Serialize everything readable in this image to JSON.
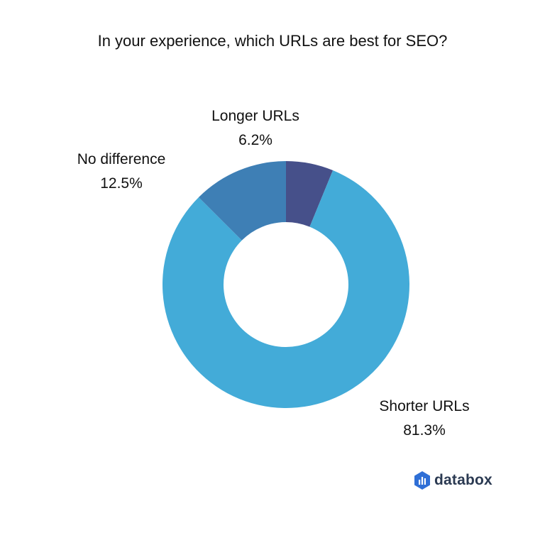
{
  "chart_data": {
    "type": "pie",
    "donut": true,
    "title": "In your experience, which URLs are best for SEO?",
    "slices": [
      {
        "label": "Longer URLs",
        "value": 6.2,
        "value_label": "6.2%",
        "color": "#46508a"
      },
      {
        "label": "Shorter URLs",
        "value": 81.3,
        "value_label": "81.3%",
        "color": "#43abd8"
      },
      {
        "label": "No difference",
        "value": 12.5,
        "value_label": "12.5%",
        "color": "#3e7fb5"
      }
    ]
  },
  "brand": {
    "name": "databox",
    "logo_icon": "databox-hexagon-logo",
    "color": "#2b3a52",
    "logo_color": "#2f6fd6"
  }
}
